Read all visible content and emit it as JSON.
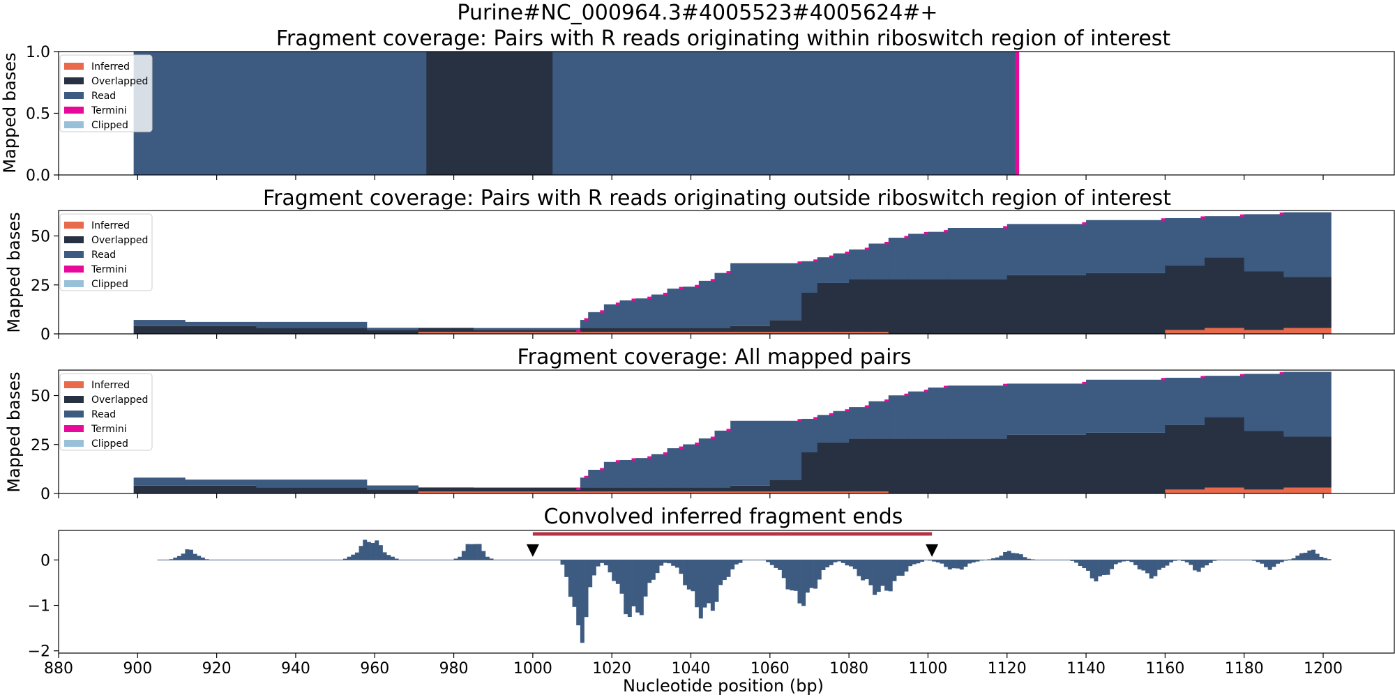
{
  "suptitle": "Purine#NC_000964.3#4005523#4005624#+",
  "colors": {
    "inferred": "#e8694b",
    "overlapped": "#283141",
    "read": "#3d5a80",
    "termini": "#e8099b",
    "clipped": "#98c1d9",
    "region_bar": "#b53144",
    "marker": "#000000"
  },
  "chart_data": [
    {
      "type": "area",
      "title": "Fragment coverage: Pairs with R reads originating within riboswitch region of interest",
      "ylabel": "Mapped bases",
      "xlim": [
        880,
        1218
      ],
      "ylim": [
        0,
        1.0
      ],
      "yticks": [
        "0.0",
        "0.5",
        "1.0"
      ],
      "legend": [
        "Inferred",
        "Overlapped",
        "Read",
        "Termini",
        "Clipped"
      ],
      "legend_position": "top-left",
      "series": [
        {
          "name": "Overlapped",
          "segments": [
            [
              973,
              1005,
              1
            ]
          ]
        },
        {
          "name": "Read",
          "segments": [
            [
              899,
              973,
              1
            ],
            [
              1005,
              1122,
              1
            ]
          ]
        },
        {
          "name": "Termini",
          "segments": [
            [
              1122,
              1123,
              1
            ]
          ]
        }
      ]
    },
    {
      "type": "area",
      "title": "Fragment coverage: Pairs with R reads originating outside riboswitch region of interest",
      "ylabel": "Mapped bases",
      "xlim": [
        880,
        1218
      ],
      "ylim": [
        0,
        63
      ],
      "yticks": [
        "0",
        "25",
        "50"
      ],
      "legend": [
        "Inferred",
        "Overlapped",
        "Read",
        "Termini",
        "Clipped"
      ],
      "legend_position": "top-left",
      "inferred": [
        [
          899,
          971,
          0
        ],
        [
          971,
          1090,
          1
        ],
        [
          1090,
          1160,
          0
        ],
        [
          1160,
          1165,
          2
        ],
        [
          1165,
          1172,
          3
        ],
        [
          1172,
          1180,
          2
        ],
        [
          1180,
          1186,
          2
        ],
        [
          1186,
          1202,
          3
        ]
      ],
      "overlapped": [
        [
          899,
          930,
          4
        ],
        [
          930,
          955,
          3
        ],
        [
          955,
          980,
          2
        ],
        [
          980,
          1050,
          2
        ],
        [
          1050,
          1060,
          3
        ],
        [
          1060,
          1062,
          6
        ],
        [
          1062,
          1070,
          20
        ],
        [
          1070,
          1080,
          25
        ],
        [
          1080,
          1090,
          27
        ],
        [
          1090,
          1110,
          28
        ],
        [
          1110,
          1140,
          30
        ],
        [
          1140,
          1160,
          31
        ],
        [
          1160,
          1168,
          33
        ],
        [
          1168,
          1172,
          36
        ],
        [
          1172,
          1176,
          28
        ],
        [
          1176,
          1180,
          31
        ],
        [
          1180,
          1188,
          30
        ],
        [
          1188,
          1195,
          26
        ],
        [
          1195,
          1198,
          23
        ],
        [
          1198,
          1202,
          17
        ]
      ],
      "total": [
        [
          899,
          912,
          8
        ],
        [
          912,
          930,
          7
        ],
        [
          930,
          958,
          7
        ],
        [
          958,
          971,
          4
        ],
        [
          971,
          985,
          4
        ],
        [
          985,
          1010,
          2
        ],
        [
          1010,
          1012,
          2
        ],
        [
          1012,
          1014,
          8
        ],
        [
          1014,
          1018,
          12
        ],
        [
          1018,
          1022,
          16
        ],
        [
          1022,
          1026,
          18
        ],
        [
          1026,
          1030,
          19
        ],
        [
          1030,
          1034,
          21
        ],
        [
          1034,
          1038,
          24
        ],
        [
          1038,
          1042,
          25
        ],
        [
          1042,
          1046,
          28
        ],
        [
          1046,
          1050,
          32
        ],
        [
          1050,
          1060,
          37
        ],
        [
          1060,
          1068,
          37
        ],
        [
          1068,
          1072,
          38
        ],
        [
          1072,
          1076,
          40
        ],
        [
          1076,
          1080,
          42
        ],
        [
          1080,
          1085,
          44
        ],
        [
          1085,
          1090,
          47
        ],
        [
          1090,
          1095,
          50
        ],
        [
          1095,
          1100,
          52
        ],
        [
          1100,
          1105,
          53
        ],
        [
          1105,
          1120,
          55
        ],
        [
          1120,
          1140,
          57
        ],
        [
          1140,
          1160,
          59
        ],
        [
          1160,
          1170,
          60
        ],
        [
          1170,
          1180,
          61
        ],
        [
          1180,
          1190,
          62
        ],
        [
          1190,
          1202,
          63
        ]
      ]
    },
    {
      "type": "area",
      "title": "Fragment coverage: All mapped pairs",
      "ylabel": "Mapped bases",
      "xlim": [
        880,
        1218
      ],
      "ylim": [
        0,
        63
      ],
      "yticks": [
        "0",
        "25",
        "50"
      ],
      "legend": [
        "Inferred",
        "Overlapped",
        "Read",
        "Termini",
        "Clipped"
      ],
      "legend_position": "top-left",
      "inferred": [
        [
          899,
          971,
          0
        ],
        [
          971,
          1090,
          1
        ],
        [
          1090,
          1160,
          0
        ],
        [
          1160,
          1165,
          2
        ],
        [
          1165,
          1172,
          3
        ],
        [
          1172,
          1180,
          2
        ],
        [
          1180,
          1186,
          2
        ],
        [
          1186,
          1202,
          3
        ]
      ],
      "overlapped": [
        [
          899,
          930,
          4
        ],
        [
          930,
          955,
          3
        ],
        [
          955,
          980,
          2
        ],
        [
          980,
          1050,
          2
        ],
        [
          1050,
          1060,
          3
        ],
        [
          1060,
          1062,
          6
        ],
        [
          1062,
          1070,
          20
        ],
        [
          1070,
          1080,
          25
        ],
        [
          1080,
          1090,
          27
        ],
        [
          1090,
          1110,
          28
        ],
        [
          1110,
          1140,
          30
        ],
        [
          1140,
          1160,
          31
        ],
        [
          1160,
          1168,
          33
        ],
        [
          1168,
          1172,
          36
        ],
        [
          1172,
          1176,
          28
        ],
        [
          1176,
          1180,
          31
        ],
        [
          1180,
          1188,
          30
        ],
        [
          1188,
          1195,
          26
        ],
        [
          1195,
          1198,
          23
        ],
        [
          1198,
          1202,
          17
        ]
      ],
      "total": [
        [
          899,
          912,
          9
        ],
        [
          912,
          930,
          8
        ],
        [
          930,
          958,
          8
        ],
        [
          958,
          971,
          5
        ],
        [
          971,
          985,
          4
        ],
        [
          985,
          1010,
          3
        ],
        [
          1010,
          1012,
          3
        ],
        [
          1012,
          1014,
          9
        ],
        [
          1014,
          1018,
          13
        ],
        [
          1018,
          1022,
          17
        ],
        [
          1022,
          1026,
          18
        ],
        [
          1026,
          1030,
          19
        ],
        [
          1030,
          1034,
          21
        ],
        [
          1034,
          1038,
          24
        ],
        [
          1038,
          1042,
          26
        ],
        [
          1042,
          1046,
          29
        ],
        [
          1046,
          1050,
          33
        ],
        [
          1050,
          1060,
          38
        ],
        [
          1060,
          1068,
          38
        ],
        [
          1068,
          1072,
          39
        ],
        [
          1072,
          1076,
          41
        ],
        [
          1076,
          1080,
          43
        ],
        [
          1080,
          1085,
          45
        ],
        [
          1085,
          1090,
          48
        ],
        [
          1090,
          1095,
          51
        ],
        [
          1095,
          1100,
          53
        ],
        [
          1100,
          1105,
          55
        ],
        [
          1105,
          1120,
          56
        ],
        [
          1120,
          1140,
          57
        ],
        [
          1140,
          1160,
          59
        ],
        [
          1160,
          1170,
          60
        ],
        [
          1170,
          1180,
          61
        ],
        [
          1180,
          1190,
          62
        ],
        [
          1190,
          1202,
          63
        ]
      ]
    },
    {
      "type": "bar",
      "title": "Convolved inferred fragment ends",
      "xlabel": "Nucleotide position (bp)",
      "xlim": [
        880,
        1218
      ],
      "ylim": [
        -2.05,
        0.65
      ],
      "xticks": [
        "880",
        "900",
        "920",
        "940",
        "960",
        "980",
        "1000",
        "1020",
        "1040",
        "1060",
        "1080",
        "1100",
        "1120",
        "1140",
        "1160",
        "1180",
        "1200"
      ],
      "yticks": [
        "0",
        "−1",
        "−2"
      ],
      "region": [
        1000,
        1101
      ],
      "region_marks": [
        1000,
        1101
      ],
      "bumps": [
        [
          908,
          918,
          0.25
        ],
        [
          952,
          966,
          0.52
        ],
        [
          980,
          990,
          0.48
        ],
        [
          1007,
          1017,
          -1.9
        ],
        [
          1017,
          1034,
          -1.45
        ],
        [
          1034,
          1053,
          -1.35
        ],
        [
          1059,
          1077,
          -1.05
        ],
        [
          1077,
          1099,
          -0.82
        ],
        [
          1100,
          1114,
          -0.25
        ],
        [
          1115,
          1127,
          0.22
        ],
        [
          1136,
          1150,
          -0.5
        ],
        [
          1150,
          1163,
          -0.42
        ],
        [
          1164,
          1173,
          -0.28
        ],
        [
          1182,
          1191,
          -0.22
        ],
        [
          1191,
          1202,
          0.25
        ]
      ]
    }
  ]
}
